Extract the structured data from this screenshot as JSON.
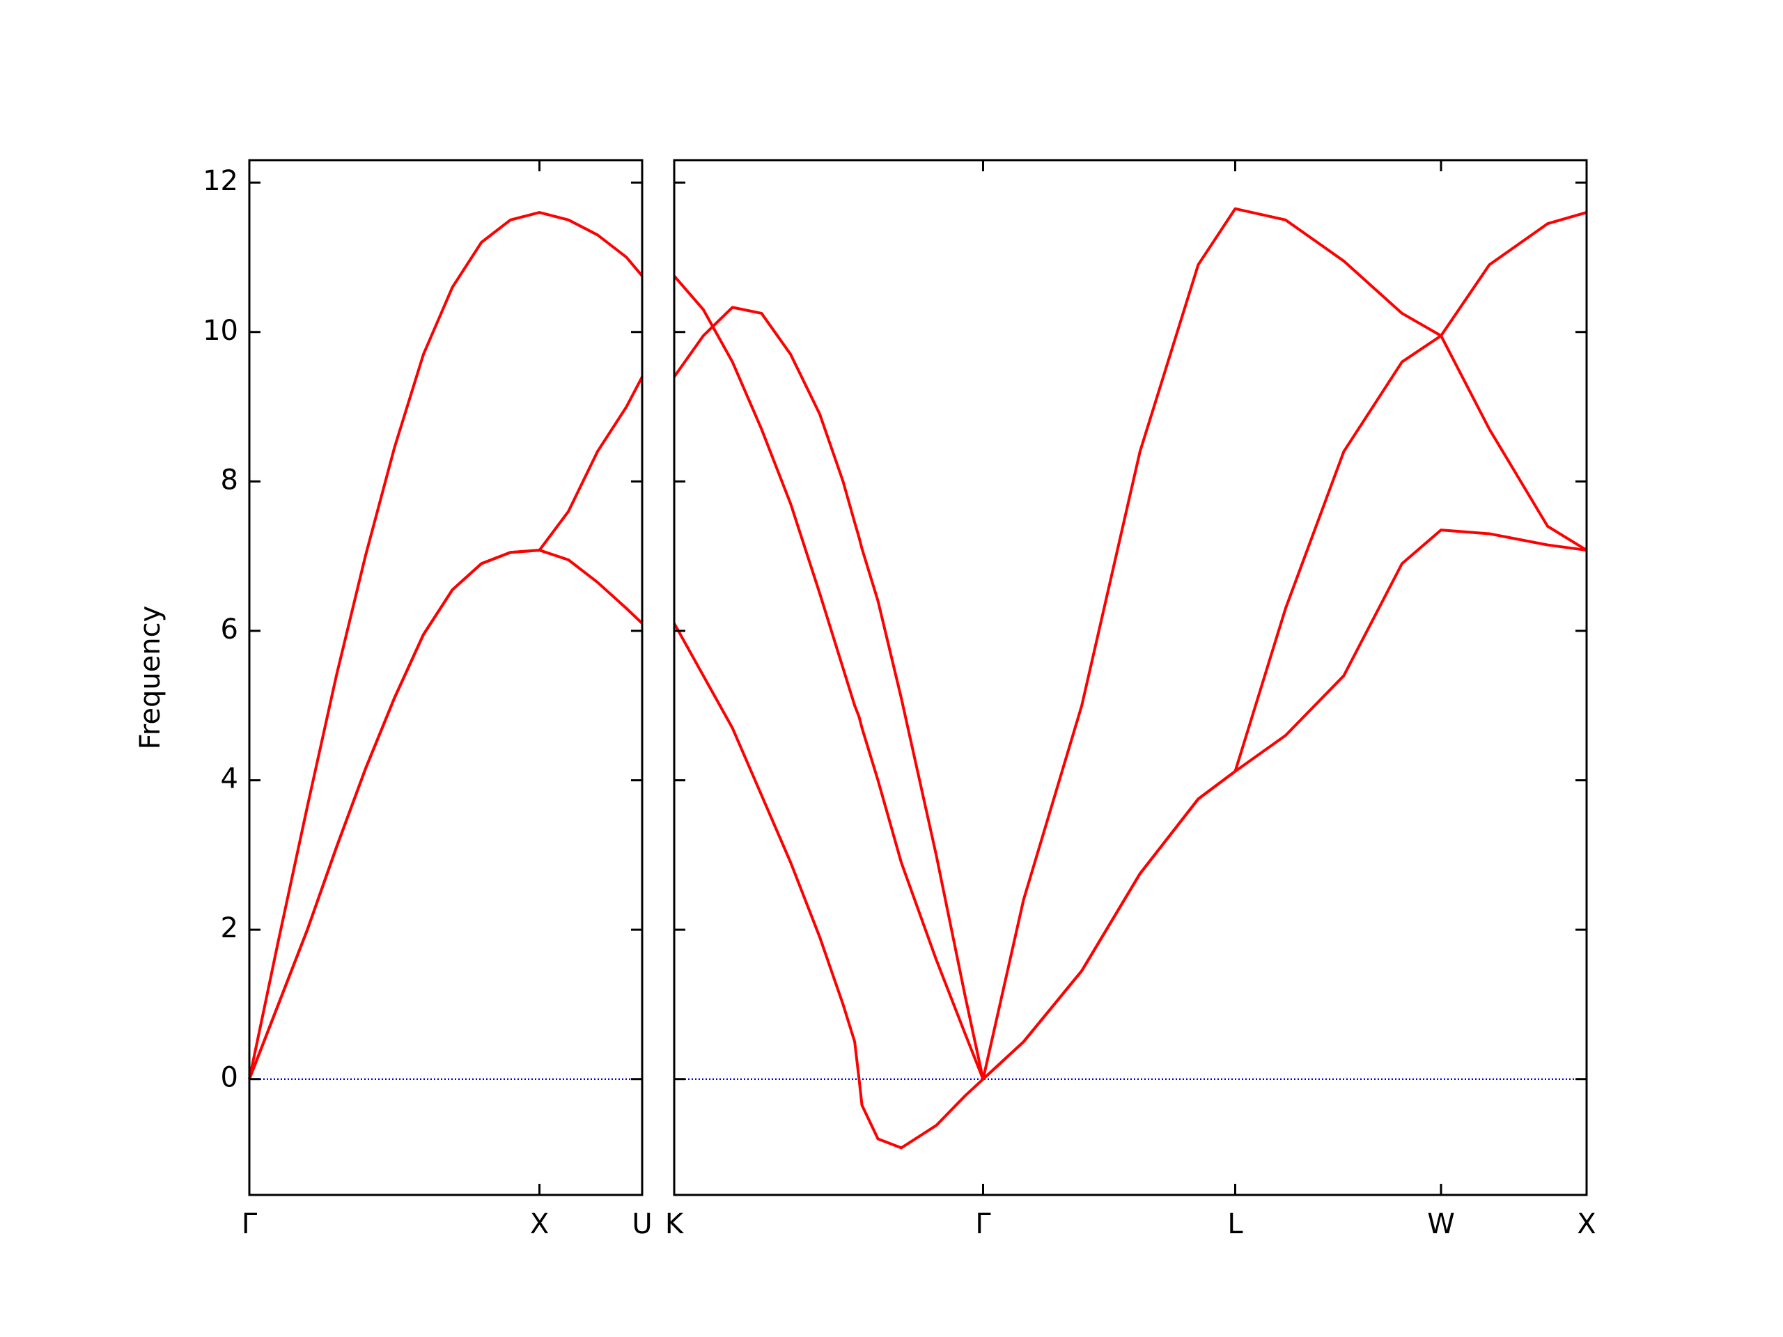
{
  "chart_data": [
    {
      "type": "line",
      "ylabel": "Frequency",
      "x": [
        0,
        0.1,
        0.2,
        0.3,
        0.4,
        0.5,
        0.6,
        0.7,
        0.8,
        0.9,
        1.0,
        1.1,
        1.2,
        1.3,
        1.354
      ],
      "series": [
        {
          "color": "#ff0000",
          "values": [
            0,
            1.0,
            2.0,
            3.1,
            4.15,
            5.1,
            5.95,
            6.55,
            6.9,
            7.05,
            7.08,
            6.95,
            6.65,
            6.3,
            6.1
          ]
        },
        {
          "color": "#ff0000",
          "values": [
            0,
            1.0,
            2.0,
            3.1,
            4.15,
            5.1,
            5.95,
            6.55,
            6.9,
            7.05,
            7.08,
            7.6,
            8.4,
            9.0,
            9.4
          ]
        },
        {
          "color": "#ff0000",
          "values": [
            0,
            1.85,
            3.65,
            5.4,
            7.0,
            8.45,
            9.7,
            10.6,
            11.2,
            11.5,
            11.6,
            11.5,
            11.3,
            11.0,
            10.75
          ]
        }
      ],
      "xlim": [
        0,
        1.354
      ],
      "ylim": [
        -1.55,
        12.3
      ],
      "xticks": [
        {
          "value": 0,
          "label": "Γ"
        },
        {
          "value": 1.0,
          "label": "X"
        },
        {
          "value": 1.354,
          "label": "U"
        }
      ],
      "yticks": [
        0,
        2,
        4,
        6,
        8,
        10,
        12
      ],
      "show_ytick_labels": true,
      "hline": 0,
      "hline_color": "#0000ff"
    },
    {
      "type": "line",
      "x": [
        0,
        0.1,
        0.2,
        0.3,
        0.4,
        0.5,
        0.58,
        0.62,
        0.635,
        0.645,
        0.7,
        0.78,
        0.9,
        1.0,
        1.061,
        1.2,
        1.4,
        1.6,
        1.8,
        1.927,
        2.1,
        2.3,
        2.5,
        2.634,
        2.8,
        3.0,
        3.134
      ],
      "series": [
        {
          "color": "#ff0000",
          "values": [
            6.1,
            5.4,
            4.7,
            3.8,
            2.9,
            1.9,
            1.0,
            0.5,
            0.0,
            -0.35,
            -0.8,
            -0.92,
            -0.62,
            -0.22,
            0,
            0.5,
            1.45,
            2.75,
            3.75,
            4.12,
            4.6,
            5.4,
            6.9,
            7.35,
            7.3,
            7.15,
            7.08
          ]
        },
        {
          "color": "#ff0000",
          "values": [
            9.4,
            9.95,
            10.33,
            10.25,
            9.7,
            8.9,
            8.0,
            7.45,
            7.25,
            7.1,
            6.4,
            5.1,
            3.0,
            1.1,
            0,
            0.5,
            1.45,
            2.75,
            3.75,
            4.12,
            6.3,
            8.4,
            9.6,
            9.95,
            8.7,
            7.4,
            7.08
          ]
        },
        {
          "color": "#ff0000",
          "values": [
            10.75,
            10.3,
            9.6,
            8.7,
            7.7,
            6.5,
            5.5,
            5.0,
            4.85,
            4.7,
            4.0,
            2.9,
            1.6,
            0.6,
            0,
            2.4,
            5.0,
            8.4,
            10.9,
            11.65,
            11.5,
            10.95,
            10.25,
            9.95,
            10.9,
            11.45,
            11.6
          ]
        }
      ],
      "xlim": [
        0,
        3.134
      ],
      "ylim": [
        -1.55,
        12.3
      ],
      "xticks": [
        {
          "value": 0,
          "label": "K"
        },
        {
          "value": 1.061,
          "label": "Γ"
        },
        {
          "value": 1.927,
          "label": "L"
        },
        {
          "value": 2.634,
          "label": "W"
        },
        {
          "value": 3.134,
          "label": "X"
        }
      ],
      "yticks": [
        0,
        2,
        4,
        6,
        8,
        10,
        12
      ],
      "show_ytick_labels": false,
      "hline": 0,
      "hline_color": "#0000ff"
    }
  ]
}
